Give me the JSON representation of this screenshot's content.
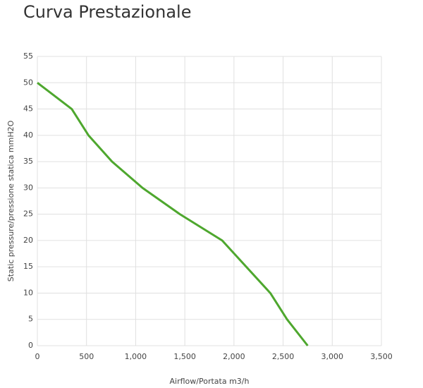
{
  "chart_data": {
    "type": "line",
    "title": "Curva Prestazionale",
    "x_label": "Airflow/Portata m3/h",
    "y_label": "Static pressure/pressione statica mmH2O",
    "x": [
      0,
      350,
      520,
      760,
      1070,
      1450,
      1880,
      2370,
      2540,
      2750
    ],
    "series": [
      {
        "name": null,
        "color": "#4ea72e",
        "values": [
          50,
          45,
          40,
          35,
          30,
          25,
          20,
          10,
          5,
          0
        ]
      }
    ],
    "xlim": [
      0,
      3500
    ],
    "xticks": [
      0,
      500,
      {
        "value": 1000,
        "label": "1,000"
      },
      {
        "value": 1500,
        "label": "1,500"
      },
      {
        "value": 2000,
        "label": "2,000"
      },
      {
        "value": 2500,
        "label": "2,500"
      },
      {
        "value": 3000,
        "label": "3,000"
      },
      {
        "value": 3500,
        "label": "3,500"
      }
    ],
    "ylim": [
      0,
      55
    ],
    "yticks": [
      0,
      5,
      10,
      15,
      20,
      25,
      30,
      35,
      40,
      45,
      50,
      55
    ],
    "grid": true
  }
}
